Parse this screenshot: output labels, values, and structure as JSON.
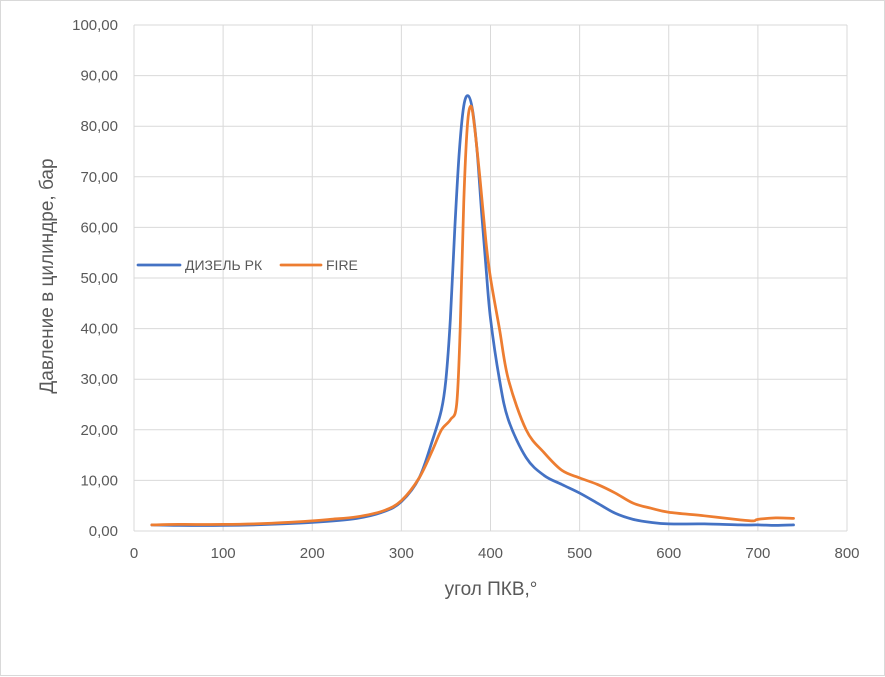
{
  "chart_data": {
    "type": "line",
    "xlabel": "угол ПКВ,°",
    "ylabel": "Давление в цилиндре, бар",
    "xlim": [
      0,
      800
    ],
    "ylim": [
      0,
      100
    ],
    "x_ticks": [
      "0",
      "100",
      "200",
      "300",
      "400",
      "500",
      "600",
      "700",
      "800"
    ],
    "y_ticks": [
      "0,00",
      "10,00",
      "20,00",
      "30,00",
      "40,00",
      "50,00",
      "60,00",
      "70,00",
      "80,00",
      "90,00",
      "100,00"
    ],
    "grid": true,
    "legend_position": "left-middle",
    "series": [
      {
        "name": "ДИЗЕЛЬ РК",
        "color": "#4472c4",
        "x": [
          20,
          50,
          100,
          150,
          200,
          250,
          280,
          300,
          320,
          335,
          345,
          350,
          355,
          360,
          365,
          370,
          375,
          380,
          385,
          390,
          395,
          400,
          410,
          420,
          440,
          460,
          480,
          500,
          520,
          540,
          560,
          580,
          600,
          640,
          680,
          700,
          720,
          740
        ],
        "y": [
          1.2,
          1.1,
          1.1,
          1.3,
          1.7,
          2.5,
          3.8,
          5.8,
          10.5,
          18,
          24,
          30,
          42,
          60,
          75,
          84,
          86,
          83,
          75,
          63,
          52,
          42,
          30,
          22,
          14.5,
          11,
          9.2,
          7.5,
          5.5,
          3.5,
          2.3,
          1.7,
          1.4,
          1.4,
          1.2,
          1.2,
          1.1,
          1.2
        ]
      },
      {
        "name": "FIRE",
        "color": "#ed7d31",
        "x": [
          20,
          50,
          100,
          150,
          200,
          220,
          250,
          280,
          300,
          320,
          335,
          345,
          355,
          362,
          366,
          370,
          374,
          378,
          382,
          388,
          395,
          400,
          410,
          420,
          440,
          460,
          480,
          500,
          520,
          540,
          560,
          580,
          600,
          640,
          680,
          695,
          700,
          720,
          740
        ],
        "y": [
          1.2,
          1.3,
          1.3,
          1.5,
          2.0,
          2.3,
          2.8,
          4.0,
          6.0,
          10.5,
          16,
          20,
          22,
          25,
          40,
          65,
          80,
          84,
          80,
          70,
          57,
          50,
          40,
          30,
          20,
          15.5,
          12,
          10.5,
          9.2,
          7.5,
          5.5,
          4.5,
          3.7,
          3.0,
          2.2,
          2.0,
          2.3,
          2.6,
          2.5
        ]
      }
    ]
  }
}
